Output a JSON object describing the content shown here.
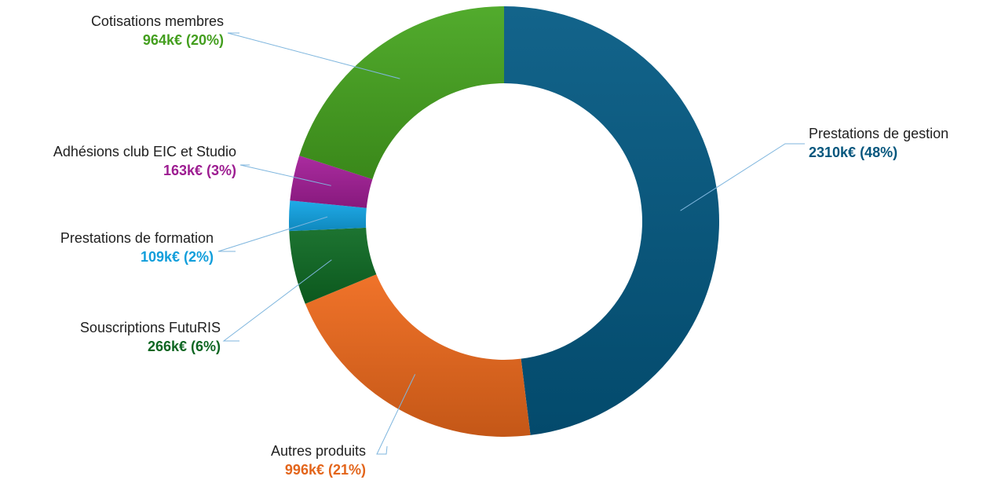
{
  "chart_data": {
    "type": "pie",
    "style": "donut",
    "title": "",
    "slices": [
      {
        "label": "Prestations de gestion",
        "value": 2310,
        "value_label": "2310k€ (48%)",
        "color": "#045a84"
      },
      {
        "label": "Autres produits",
        "value": 996,
        "value_label": "996k€ (21%)",
        "color": "#ef6a1c"
      },
      {
        "label": "Souscriptions FutuRIS",
        "value": 266,
        "value_label": "266k€ (6%)",
        "color": "#0f6b24"
      },
      {
        "label": "Prestations de formation",
        "value": 109,
        "value_label": "109k€ (2%)",
        "color": "#12a6e6"
      },
      {
        "label": "Adhésions club EIC et Studio",
        "value": 163,
        "value_label": "163k€ (3%)",
        "color": "#a51f99"
      },
      {
        "label": "Cotisations membres",
        "value": 964,
        "value_label": "964k€ (20%)",
        "color": "#47a620"
      }
    ]
  }
}
